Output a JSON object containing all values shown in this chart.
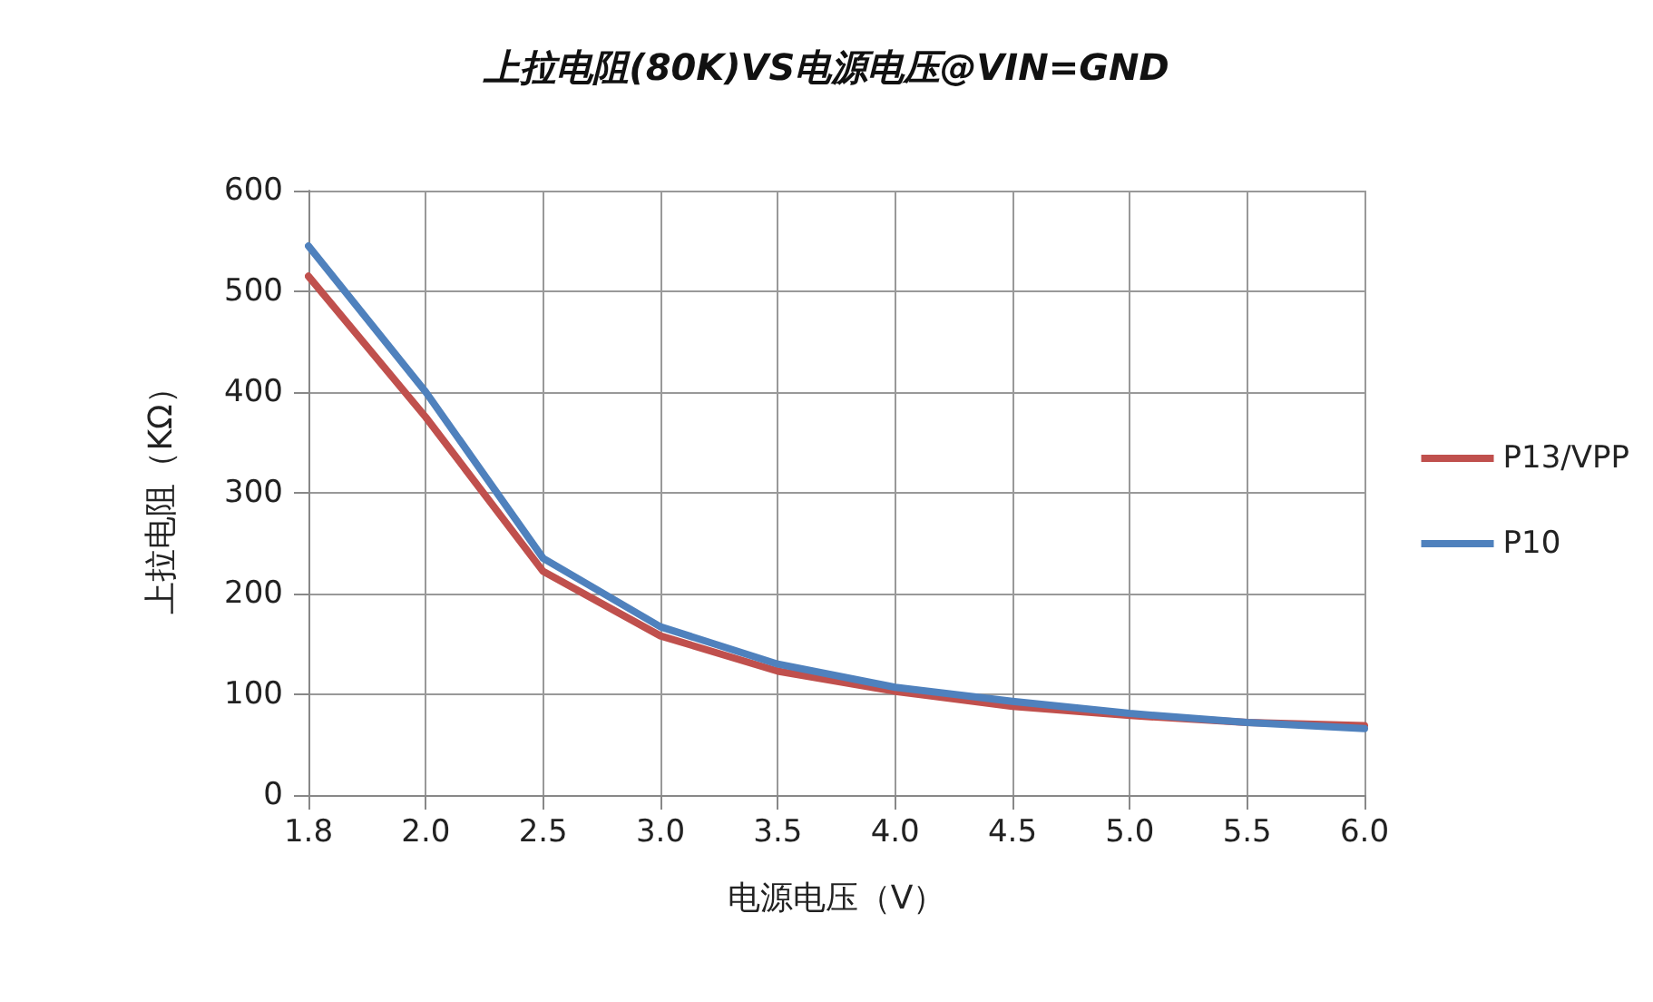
{
  "chart_data": {
    "type": "line",
    "title": "上拉电阻(80K)VS电源电压@VIN=GND",
    "xlabel": "电源电压（V）",
    "ylabel": "上拉电阻（KΩ）",
    "categories": [
      "1.8",
      "2.0",
      "2.5",
      "3.0",
      "3.5",
      "4.0",
      "4.5",
      "5.0",
      "5.5",
      "6.0"
    ],
    "series": [
      {
        "name": "P13/VPP",
        "color": "#c0504d",
        "values": [
          515,
          375,
          222,
          158,
          123,
          103,
          88,
          79,
          72,
          69
        ]
      },
      {
        "name": "P10",
        "color": "#4f81bd",
        "values": [
          545,
          400,
          235,
          167,
          130,
          107,
          93,
          81,
          72,
          66
        ]
      }
    ],
    "ylim": [
      0,
      600
    ],
    "yticks": [
      0,
      100,
      200,
      300,
      400,
      500,
      600
    ],
    "grid": true,
    "legend": "right",
    "marker": "none",
    "line_style": "solid"
  }
}
